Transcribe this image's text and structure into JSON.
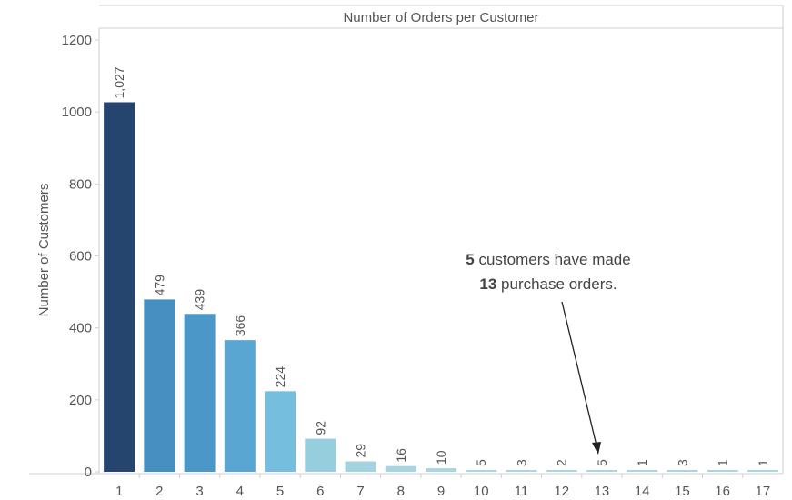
{
  "chart_data": {
    "type": "bar",
    "title": "Number of Orders per Customer",
    "xlabel": "",
    "ylabel": "Number of Customers",
    "categories": [
      "1",
      "2",
      "3",
      "4",
      "5",
      "6",
      "7",
      "8",
      "9",
      "10",
      "11",
      "12",
      "13",
      "14",
      "15",
      "16",
      "17"
    ],
    "values": [
      1027,
      479,
      439,
      366,
      224,
      92,
      29,
      16,
      10,
      5,
      3,
      2,
      5,
      1,
      3,
      1,
      1
    ],
    "data_labels": [
      "1,027",
      "479",
      "439",
      "366",
      "224",
      "92",
      "29",
      "16",
      "10",
      "5",
      "3",
      "2",
      "5",
      "1",
      "3",
      "1",
      "1"
    ],
    "ylim": [
      0,
      1250
    ],
    "yticks": [
      0,
      200,
      400,
      600,
      800,
      1000,
      1200
    ],
    "ytick_labels": [
      "0",
      "200",
      "400",
      "600",
      "800",
      "1000",
      "1200"
    ],
    "grid": false,
    "colors": [
      "#26456e",
      "#4590c0",
      "#4a97c8",
      "#5aa6d2",
      "#75bedd",
      "#96cede",
      "#a3d3df",
      "#a8d5e0",
      "#a9d6e0",
      "#aad6e0",
      "#aad6e0",
      "#aad6e0",
      "#aad6e0",
      "#aad6e0",
      "#aad6e0",
      "#aad6e0",
      "#aad6e0"
    ],
    "annotation": {
      "line1_bold": "5",
      "line1_text": " customers have made",
      "line2_bold": "13",
      "line2_text": " purchase orders.",
      "target_category": "13"
    }
  }
}
